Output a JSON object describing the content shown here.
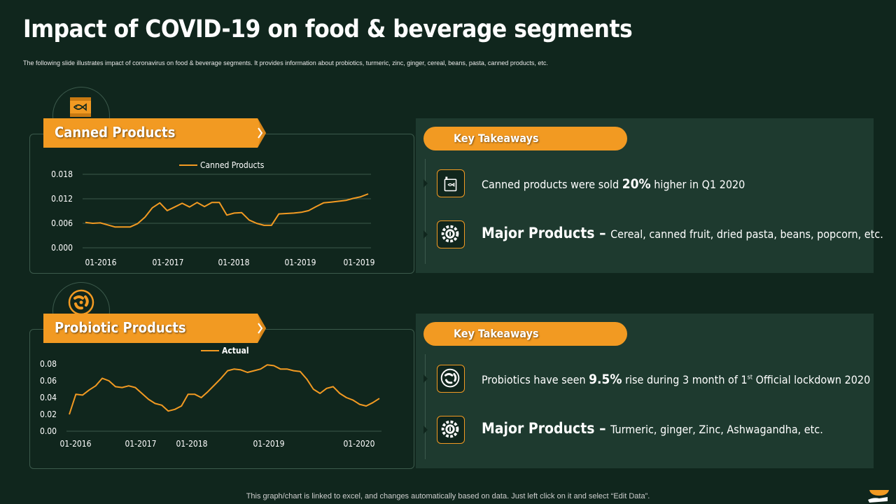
{
  "title": "Impact of COVID-19 on food & beverage segments",
  "subtitle": "The following  slide  illustrates  impact  of  coronavirus  on  food  & beverage  segments.  It provides  information  about  probiotics,  turmeric,  zinc,  ginger,  cereal,  beans,  pasta,  canned  products,  etc.",
  "sections": [
    {
      "banner": "Canned Products",
      "icon": "canned-fish-icon",
      "takeaways_label": "Key Takeaways",
      "stat_prefix": "Canned products were sold ",
      "stat_value": "20%",
      "stat_suffix": " higher in Q1 2020",
      "stat_sup": "",
      "stat_tail": "",
      "major_label": "Major Products",
      "major_dash": " – ",
      "major_text": "Cereal, canned fruit, dried pasta, beans, popcorn, etc."
    },
    {
      "banner": "Probiotic Products",
      "icon": "probiotic-bacteria-icon",
      "takeaways_label": "Key Takeaways",
      "stat_prefix": "Probiotics have seen ",
      "stat_value": "9.5%",
      "stat_suffix": " rise during 3 month of 1",
      "stat_sup": "st",
      "stat_tail": " Official  lockdown 2020",
      "major_label": "Major Products",
      "major_dash": " – ",
      "major_text": "Turmeric, ginger, Zinc, Ashwagandha, etc."
    }
  ],
  "footer": "This graph/chart is linked to excel,  and changes automatically based on data. Just left click on it and select “Edit Data”.",
  "colors": {
    "accent": "#f29a22",
    "background": "#10261d",
    "panel": "#1e3a2f",
    "grid": "#3c5a4c"
  },
  "chart_data": [
    {
      "type": "line",
      "legend": "top",
      "grid": true,
      "ylim": [
        0,
        0.018
      ],
      "yticks": [
        "0.000",
        "0.006",
        "0.012",
        "0.018"
      ],
      "xticks": [
        "01-2016",
        "01-2017",
        "01-2018",
        "01-2019",
        "01-2019"
      ],
      "series": [
        {
          "name": "Canned Products",
          "values": [
            0.0062,
            0.006,
            0.0061,
            0.0056,
            0.0051,
            0.0051,
            0.0051,
            0.0059,
            0.0075,
            0.0098,
            0.011,
            0.0091,
            0.01,
            0.0109,
            0.01,
            0.0111,
            0.0101,
            0.0111,
            0.0111,
            0.008,
            0.0085,
            0.0086,
            0.0068,
            0.006,
            0.0055,
            0.0055,
            0.0083,
            0.0084,
            0.0085,
            0.0087,
            0.0091,
            0.0101,
            0.011,
            0.0112,
            0.0114,
            0.0116,
            0.0121,
            0.0125,
            0.0132
          ]
        }
      ]
    },
    {
      "type": "line",
      "legend": "top",
      "grid": false,
      "ylim": [
        0,
        0.08
      ],
      "yticks": [
        "0.00",
        "0.02",
        "0.04",
        "0.06",
        "0.08"
      ],
      "xticks": [
        "01-2016",
        "01-2017",
        "01-2018",
        "01-2019",
        "01-2020"
      ],
      "series": [
        {
          "name": "Actual",
          "values": [
            0.02,
            0.044,
            0.043,
            0.049,
            0.054,
            0.063,
            0.06,
            0.053,
            0.052,
            0.054,
            0.052,
            0.045,
            0.038,
            0.033,
            0.031,
            0.024,
            0.026,
            0.03,
            0.044,
            0.044,
            0.04,
            0.047,
            0.055,
            0.063,
            0.072,
            0.074,
            0.073,
            0.07,
            0.072,
            0.074,
            0.079,
            0.078,
            0.074,
            0.074,
            0.072,
            0.071,
            0.062,
            0.05,
            0.045,
            0.051,
            0.053,
            0.045,
            0.04,
            0.037,
            0.032,
            0.03,
            0.034,
            0.039
          ]
        }
      ]
    }
  ]
}
